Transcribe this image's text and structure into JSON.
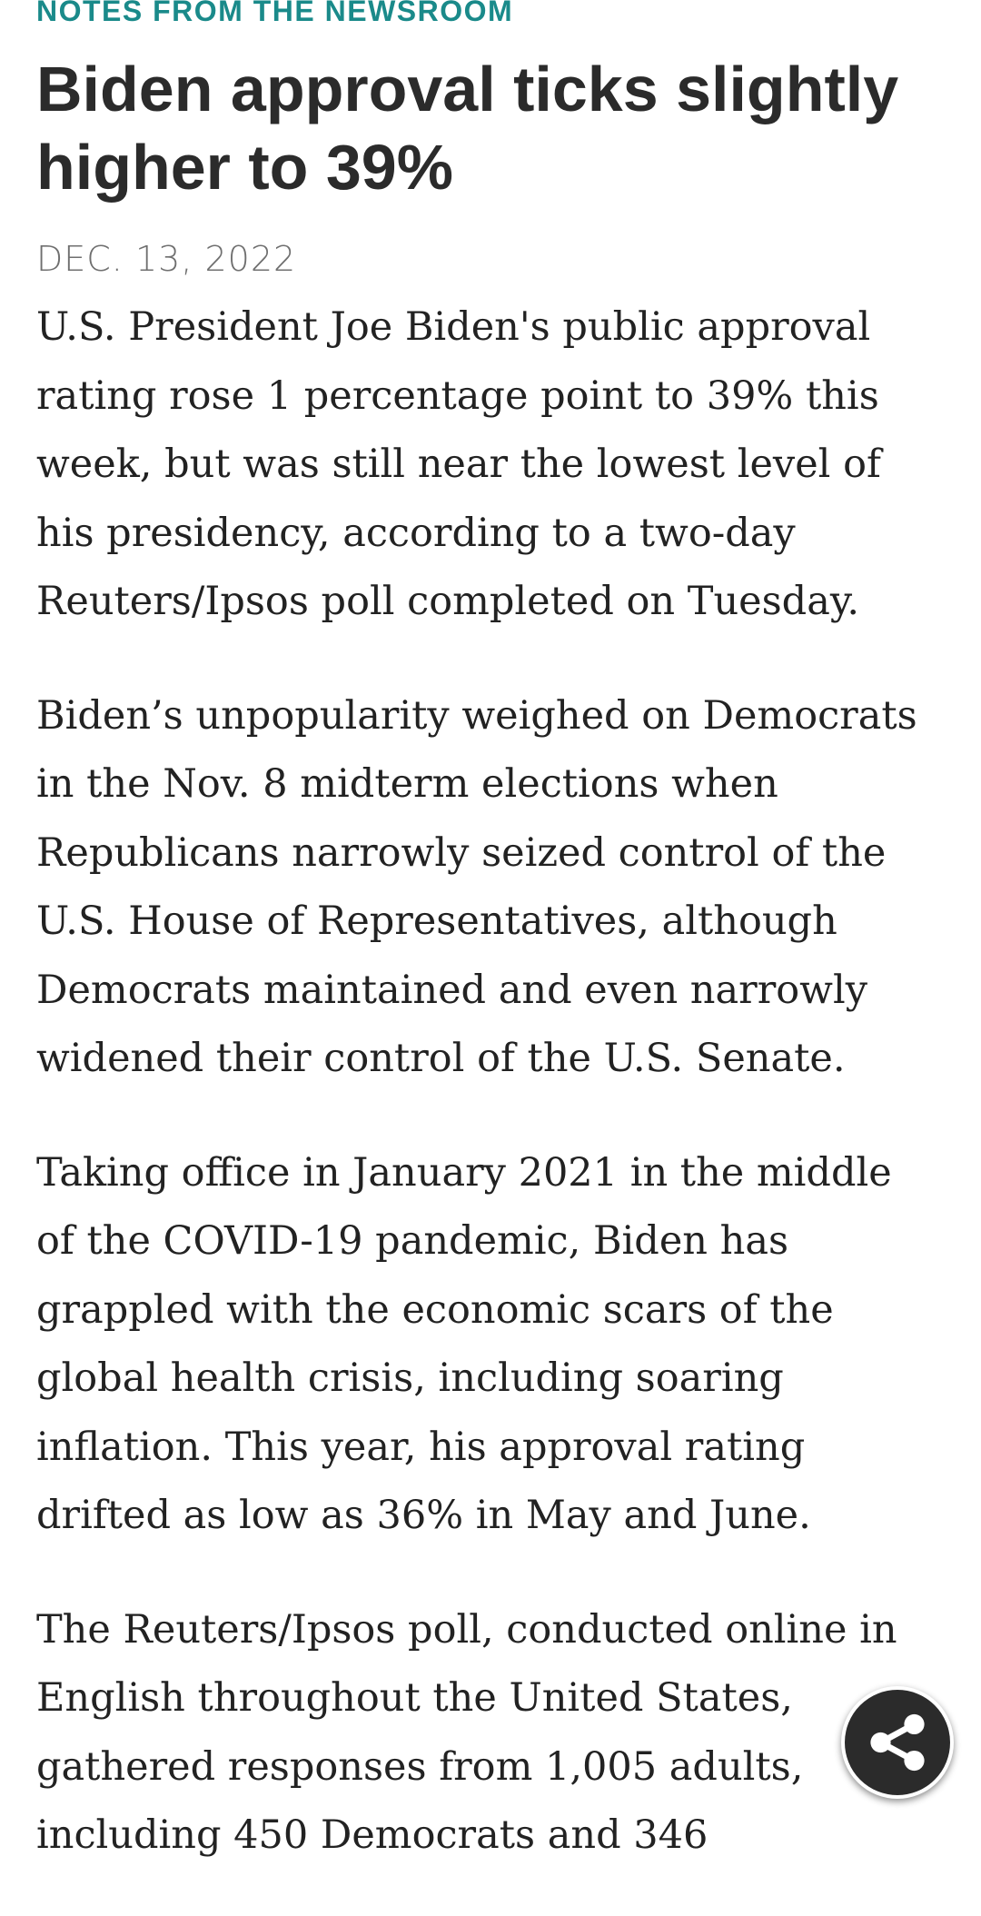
{
  "article": {
    "kicker": "NOTES FROM THE NEWSROOM",
    "headline_lines": [
      "Biden approval ticks slightly",
      "higher to 39%"
    ],
    "dateline": "DEC. 13, 2022",
    "paragraphs": [
      {
        "lines": [
          "U.S. President Joe Biden's public approval",
          "rating rose 1 percentage point to 39% this",
          "week, but was still near the lowest level of",
          "his presidency, according to a two-day",
          "Reuters/Ipsos poll completed on Tuesday."
        ]
      },
      {
        "lines": [
          "Biden’s unpopularity weighed on Democrats",
          "in the Nov. 8 midterm elections when",
          "Republicans narrowly seized control of the",
          "U.S. House of Representatives, although",
          "Democrats maintained and even narrowly",
          "widened their control of the U.S. Senate."
        ]
      },
      {
        "lines": [
          "Taking office in January 2021 in the middle",
          "of the COVID-19 pandemic, Biden has",
          "grappled with the economic scars of the",
          "global health crisis, including soaring",
          "inflation. This year, his approval rating",
          "drifted as low as 36% in May and June."
        ]
      },
      {
        "lines": [
          "The Reuters/Ipsos poll, conducted online in",
          "English throughout the United States,",
          "gathered responses from 1,005 adults,",
          "including 450 Democrats and 346"
        ]
      }
    ]
  },
  "share_button": {
    "icon": "share-icon"
  },
  "colors": {
    "kicker": "#1a8a8a",
    "headline": "#2b2b2b",
    "dateline": "#6f6f6f",
    "body": "#222222",
    "fab": "#2b2b2b"
  }
}
